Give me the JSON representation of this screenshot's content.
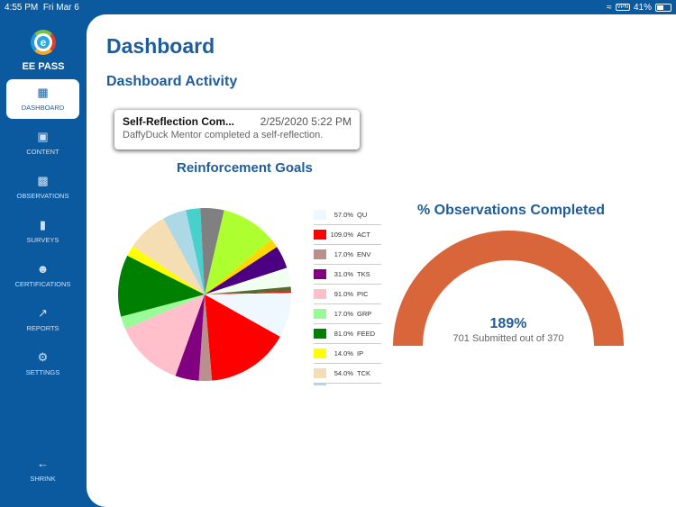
{
  "status": {
    "time": "4:55 PM",
    "date": "Fri Mar 6",
    "vpn": "VPN",
    "battery": "41%",
    "battery_level": 0.41
  },
  "sidebar": {
    "brand": "EE PASS",
    "logo_letter": "e",
    "items": [
      {
        "label": "DASHBOARD",
        "icon": "dashboard-icon",
        "active": true
      },
      {
        "label": "CONTENT",
        "icon": "image-icon"
      },
      {
        "label": "OBSERVATIONS",
        "icon": "bar-chart-icon"
      },
      {
        "label": "SURVEYS",
        "icon": "book-icon"
      },
      {
        "label": "CERTIFICATIONS",
        "icon": "person-check-icon"
      },
      {
        "label": "REPORTS",
        "icon": "trend-icon"
      },
      {
        "label": "SETTINGS",
        "icon": "gear-icon"
      }
    ],
    "shrink": "SHRINK"
  },
  "main": {
    "title": "Dashboard",
    "activity_title": "Dashboard Activity",
    "activity": {
      "title": "Self-Reflection Com...",
      "date": "2/25/2020 5:22 PM",
      "message": "DaffyDuck Mentor completed a self-reflection."
    }
  },
  "chart_data": [
    {
      "type": "pie",
      "title": "Reinforcement Goals",
      "slices": [
        {
          "label": "QU",
          "value": 57,
          "display": "57.0%",
          "color": "#f0f8ff"
        },
        {
          "label": "ACT",
          "value": 109,
          "display": "109.0%",
          "color": "#ff0000"
        },
        {
          "label": "ENV",
          "value": 17,
          "display": "17.0%",
          "color": "#bc8f8f"
        },
        {
          "label": "TKS",
          "value": 31,
          "display": "31.0%",
          "color": "#800080"
        },
        {
          "label": "PIC",
          "value": 91,
          "display": "91.0%",
          "color": "#ffc0cb"
        },
        {
          "label": "GRP",
          "value": 17,
          "display": "17.0%",
          "color": "#98fb98"
        },
        {
          "label": "FEED",
          "value": 81,
          "display": "81.0%",
          "color": "#008000"
        },
        {
          "label": "IP",
          "value": 14,
          "display": "14.0%",
          "color": "#ffff00"
        },
        {
          "label": "TCK",
          "value": 54,
          "display": "54.0%",
          "color": "#f5deb3"
        },
        {
          "value": 31,
          "color": "#add8e6"
        },
        {
          "value": 19,
          "color": "#48d1cc"
        },
        {
          "value": 31,
          "color": "#808080"
        },
        {
          "value": 73,
          "color": "#adff2f"
        },
        {
          "value": 12,
          "color": "#ffd700"
        },
        {
          "value": 30,
          "color": "#4b0082"
        },
        {
          "value": 25,
          "color": "#f0fff0"
        },
        {
          "value": 6,
          "color": "#556b2f"
        },
        {
          "value": 2,
          "color": "#ff0000"
        },
        {
          "value": 2,
          "color": "#ffffff"
        }
      ],
      "legend": "right"
    },
    {
      "type": "gauge",
      "title": "% Observations Completed",
      "value_label": "189%",
      "value": 189,
      "submitted": 701,
      "target": 370,
      "subtitle": "701 Submitted out of 370",
      "color": "#d9663b"
    }
  ]
}
